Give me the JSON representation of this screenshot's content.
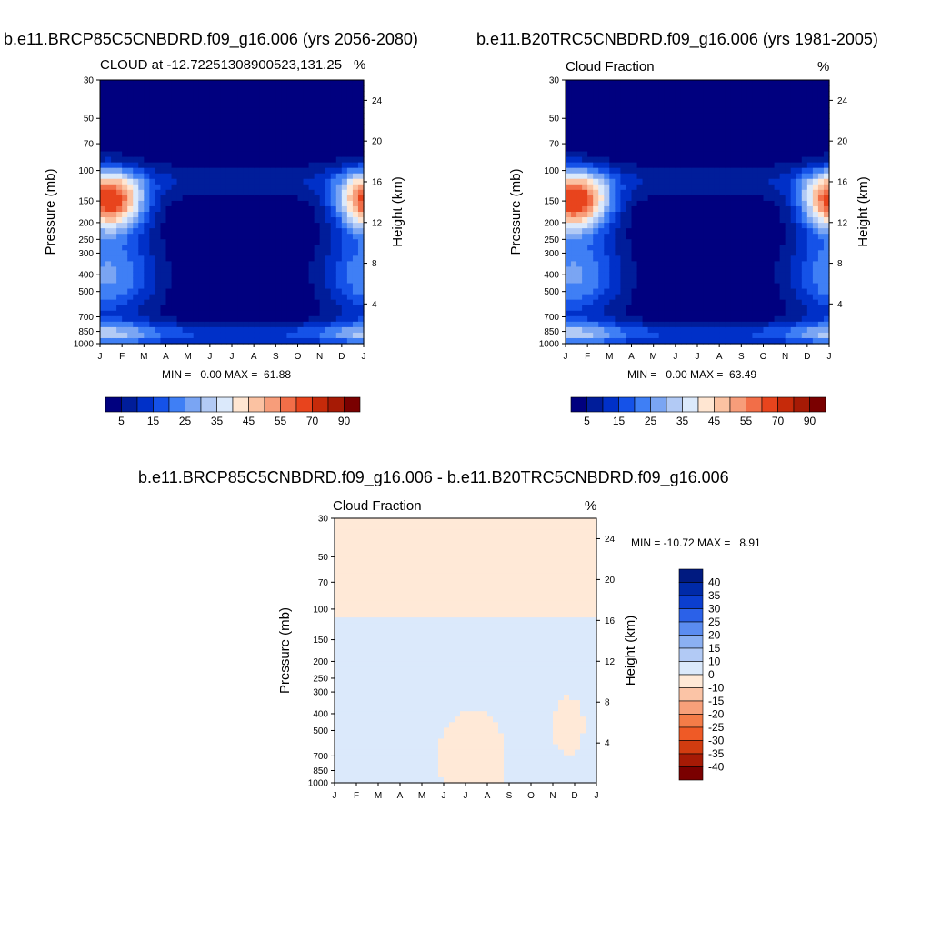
{
  "chart_data": [
    {
      "type": "contour",
      "title": "b.e11.BRCP85C5CNBDRD.f09_g16.006 (yrs 2056-2080)",
      "left_label": "CLOUD at -12.72251308900523,131.25",
      "right_label": "%",
      "ylabel": "Pressure (mb)",
      "ylabel_right": "Height (km)",
      "x_ticks": [
        "J",
        "F",
        "M",
        "A",
        "M",
        "J",
        "J",
        "A",
        "S",
        "O",
        "N",
        "D",
        "J"
      ],
      "y_ticks": [
        "30",
        "50",
        "70",
        "100",
        "150",
        "200",
        "250",
        "300",
        "400",
        "500",
        "700",
        "850",
        "1000"
      ],
      "y_ticks_right": [
        "24",
        "20",
        "16",
        "12",
        "8",
        "4"
      ],
      "min_text": "MIN =   0.00 MAX =  61.88",
      "min": 0.0,
      "max": 61.88,
      "colorbar_labels": [
        "5",
        "15",
        "25",
        "35",
        "45",
        "55",
        "70",
        "90"
      ],
      "colors": [
        "#00007f",
        "#001d9a",
        "#0030c8",
        "#1552e8",
        "#3f7ff5",
        "#7aa5f3",
        "#b2caf5",
        "#dbe9fb",
        "#ffe6d2",
        "#fbc2a2",
        "#f79d7a",
        "#f26e48",
        "#e8441d",
        "#c62a0a",
        "#a61a05",
        "#7a0000"
      ]
    },
    {
      "type": "contour",
      "title": "b.e11.B20TRC5CNBDRD.f09_g16.006 (yrs 1981-2005)",
      "left_label": "Cloud Fraction",
      "right_label": "%",
      "ylabel": "Pressure (mb)",
      "ylabel_right": "Height (km)",
      "x_ticks": [
        "J",
        "F",
        "M",
        "A",
        "M",
        "J",
        "J",
        "A",
        "S",
        "O",
        "N",
        "D",
        "J"
      ],
      "y_ticks": [
        "30",
        "50",
        "70",
        "100",
        "150",
        "200",
        "250",
        "300",
        "400",
        "500",
        "700",
        "850",
        "1000"
      ],
      "y_ticks_right": [
        "24",
        "20",
        "16",
        "12",
        "8",
        "4"
      ],
      "min_text": "MIN =   0.00 MAX =  63.49",
      "min": 0.0,
      "max": 63.49,
      "colorbar_labels": [
        "5",
        "15",
        "25",
        "35",
        "45",
        "55",
        "70",
        "90"
      ],
      "colors": [
        "#00007f",
        "#001d9a",
        "#0030c8",
        "#1552e8",
        "#3f7ff5",
        "#7aa5f3",
        "#b2caf5",
        "#dbe9fb",
        "#ffe6d2",
        "#fbc2a2",
        "#f79d7a",
        "#f26e48",
        "#e8441d",
        "#c62a0a",
        "#a61a05",
        "#7a0000"
      ]
    },
    {
      "type": "contour",
      "title": "b.e11.BRCP85C5CNBDRD.f09_g16.006 - b.e11.B20TRC5CNBDRD.f09_g16.006",
      "left_label": "Cloud Fraction",
      "right_label": "%",
      "ylabel": "Pressure (mb)",
      "ylabel_right": "Height (km)",
      "x_ticks": [
        "J",
        "F",
        "M",
        "A",
        "M",
        "J",
        "J",
        "A",
        "S",
        "O",
        "N",
        "D",
        "J"
      ],
      "y_ticks": [
        "30",
        "50",
        "70",
        "100",
        "150",
        "200",
        "250",
        "300",
        "400",
        "500",
        "700",
        "850",
        "1000"
      ],
      "y_ticks_right": [
        "24",
        "20",
        "16",
        "12",
        "8",
        "4"
      ],
      "min_text": "MIN = -10.72 MAX =   8.91",
      "min": -10.72,
      "max": 8.91,
      "colorbar_labels": [
        "40",
        "35",
        "30",
        "25",
        "20",
        "15",
        "10",
        "0",
        "-10",
        "-15",
        "-20",
        "-25",
        "-30",
        "-35",
        "-40"
      ],
      "colors": [
        "#7a0000",
        "#a61a05",
        "#d23c10",
        "#ef5a26",
        "#f47c48",
        "#f7a07a",
        "#fbc4a6",
        "#ffe9d7",
        "#dbe9fb",
        "#b2caf5",
        "#8bb0f2",
        "#5b8cf0",
        "#2b61e8",
        "#0b3ed0",
        "#002aa8",
        "#001a80"
      ]
    }
  ]
}
